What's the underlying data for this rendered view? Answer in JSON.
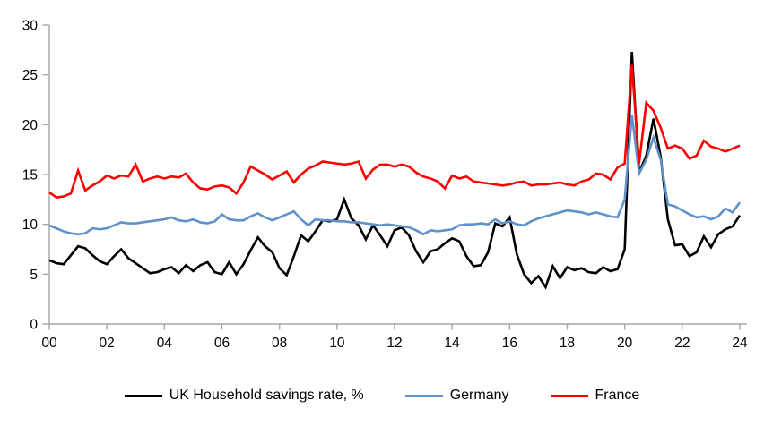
{
  "colors": {
    "axis": "#A6A6A6",
    "text": "#000000",
    "uk": "#000000",
    "germany": "#5E92C8",
    "france": "#FE0000",
    "background": "#FFFFFF"
  },
  "chart_data": {
    "type": "line",
    "title": "",
    "xlabel": "",
    "ylabel": "",
    "frequency": "quarterly",
    "x_start": "2000Q1",
    "x_end": "2024Q1",
    "ylim": [
      0,
      30
    ],
    "y_ticks": [
      "0",
      "5",
      "10",
      "15",
      "20",
      "25",
      "30"
    ],
    "x_tick_labels": [
      "00",
      "02",
      "04",
      "06",
      "08",
      "10",
      "12",
      "14",
      "16",
      "18",
      "20",
      "22",
      "24"
    ],
    "grid": false,
    "legend_position": "bottom",
    "series": [
      {
        "name": "UK Household savings rate, %",
        "color": "#000000",
        "values": [
          6.4,
          6.1,
          6.0,
          6.9,
          7.8,
          7.6,
          6.9,
          6.3,
          6.0,
          6.8,
          7.5,
          6.6,
          6.1,
          5.6,
          5.1,
          5.2,
          5.5,
          5.7,
          5.1,
          5.9,
          5.3,
          5.9,
          6.2,
          5.2,
          5.0,
          6.2,
          5.0,
          6.0,
          7.4,
          8.7,
          7.8,
          7.2,
          5.6,
          4.9,
          6.8,
          8.9,
          8.3,
          9.3,
          10.4,
          10.3,
          10.5,
          12.5,
          10.6,
          9.9,
          8.5,
          9.9,
          8.9,
          7.8,
          9.4,
          9.7,
          8.9,
          7.3,
          6.2,
          7.3,
          7.5,
          8.1,
          8.6,
          8.3,
          6.8,
          5.8,
          5.9,
          7.2,
          10.1,
          9.8,
          10.7,
          7.0,
          5.0,
          4.1,
          4.8,
          3.7,
          5.8,
          4.6,
          5.7,
          5.4,
          5.6,
          5.2,
          5.1,
          5.7,
          5.3,
          5.5,
          7.5,
          27.3,
          15.2,
          16.9,
          20.6,
          16.8,
          10.5,
          7.9,
          8.0,
          6.8,
          7.2,
          8.8,
          7.7,
          9.0,
          9.5,
          9.8,
          10.9
        ]
      },
      {
        "name": "Germany",
        "color": "#5E92C8",
        "values": [
          9.9,
          9.6,
          9.3,
          9.1,
          9.0,
          9.1,
          9.6,
          9.5,
          9.6,
          9.9,
          10.2,
          10.1,
          10.1,
          10.2,
          10.3,
          10.4,
          10.5,
          10.7,
          10.4,
          10.3,
          10.5,
          10.2,
          10.1,
          10.3,
          11.0,
          10.5,
          10.4,
          10.4,
          10.8,
          11.1,
          10.7,
          10.4,
          10.7,
          11.0,
          11.3,
          10.5,
          9.9,
          10.5,
          10.4,
          10.4,
          10.3,
          10.3,
          10.2,
          10.2,
          10.1,
          10.0,
          9.9,
          10.0,
          9.9,
          9.8,
          9.7,
          9.4,
          9.0,
          9.4,
          9.3,
          9.4,
          9.5,
          9.9,
          10.0,
          10.0,
          10.1,
          10.0,
          10.5,
          10.1,
          10.3,
          10.0,
          9.9,
          10.3,
          10.6,
          10.8,
          11.0,
          11.2,
          11.4,
          11.3,
          11.2,
          11.0,
          11.2,
          11.0,
          10.8,
          10.7,
          12.5,
          21.0,
          15.1,
          16.5,
          18.7,
          16.5,
          12.0,
          11.8,
          11.4,
          11.0,
          10.7,
          10.8,
          10.5,
          10.8,
          11.6,
          11.2,
          12.2
        ]
      },
      {
        "name": "France",
        "color": "#FE0000",
        "values": [
          13.2,
          12.7,
          12.8,
          13.1,
          15.4,
          13.4,
          13.9,
          14.3,
          14.9,
          14.6,
          14.9,
          14.8,
          16.0,
          14.3,
          14.6,
          14.8,
          14.6,
          14.8,
          14.7,
          15.1,
          14.2,
          13.6,
          13.5,
          13.8,
          13.9,
          13.7,
          13.1,
          14.2,
          15.8,
          15.4,
          15.0,
          14.5,
          14.9,
          15.3,
          14.2,
          15.0,
          15.6,
          15.9,
          16.3,
          16.2,
          16.1,
          16.0,
          16.1,
          16.3,
          14.6,
          15.5,
          16.0,
          16.0,
          15.8,
          16.0,
          15.8,
          15.2,
          14.8,
          14.6,
          14.3,
          13.6,
          14.9,
          14.6,
          14.8,
          14.3,
          14.2,
          14.1,
          14.0,
          13.9,
          14.0,
          14.2,
          14.3,
          13.9,
          14.0,
          14.0,
          14.1,
          14.2,
          14.0,
          13.9,
          14.3,
          14.5,
          15.1,
          15.0,
          14.5,
          15.7,
          16.1,
          26.0,
          16.1,
          22.2,
          21.4,
          19.7,
          17.6,
          17.9,
          17.6,
          16.6,
          16.9,
          18.4,
          17.8,
          17.6,
          17.3,
          17.6,
          17.9
        ]
      }
    ]
  },
  "legend": {
    "items": [
      {
        "label": "UK Household savings rate, %"
      },
      {
        "label": "Germany"
      },
      {
        "label": "France"
      }
    ]
  }
}
